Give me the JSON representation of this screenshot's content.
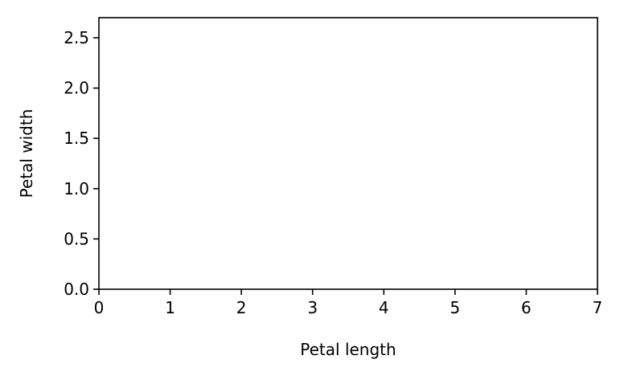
{
  "chart_data": {
    "type": "scatter",
    "title": "",
    "xlabel": "Petal length",
    "ylabel": "Petal width",
    "xlim": [
      0,
      7
    ],
    "ylim": [
      0,
      2.7
    ],
    "x_ticks": [
      0,
      1,
      2,
      3,
      4,
      5,
      6,
      7
    ],
    "x_tick_labels": [
      "0",
      "1",
      "2",
      "3",
      "4",
      "5",
      "6",
      "7"
    ],
    "y_ticks": [
      0,
      0.5,
      1,
      1.5,
      2,
      2.5
    ],
    "y_tick_labels": [
      "0.0",
      "0.5",
      "1.0",
      "1.5",
      "2.0",
      "2.5"
    ],
    "grid": false,
    "legend": "none",
    "series": [],
    "colors": {
      "axes": "#000000",
      "background": "#ffffff"
    }
  }
}
